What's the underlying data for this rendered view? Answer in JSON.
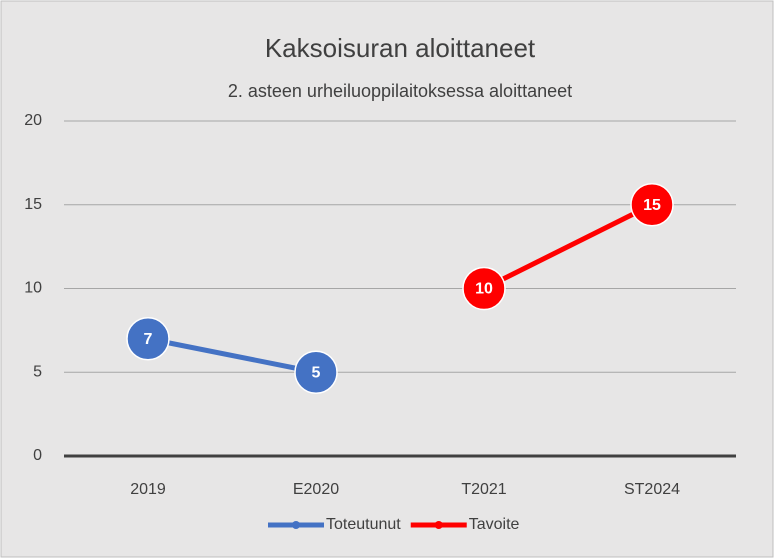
{
  "chart_data": {
    "type": "line",
    "title": "Kaksoisuran aloittaneet",
    "subtitle": "2. asteen urheiluoppilaitoksessa aloittaneet",
    "categories": [
      "2019",
      "E2020",
      "T2021",
      "ST2024"
    ],
    "series": [
      {
        "name": "Toteutunut",
        "color": "#4472c4",
        "values": [
          7,
          5,
          null,
          null
        ]
      },
      {
        "name": "Tavoite",
        "color": "#ff0000",
        "values": [
          null,
          null,
          10,
          15
        ]
      }
    ],
    "ylim": [
      0,
      20
    ],
    "yticks": [
      0,
      5,
      10,
      15,
      20
    ],
    "grid": true,
    "legend": "bottom"
  }
}
